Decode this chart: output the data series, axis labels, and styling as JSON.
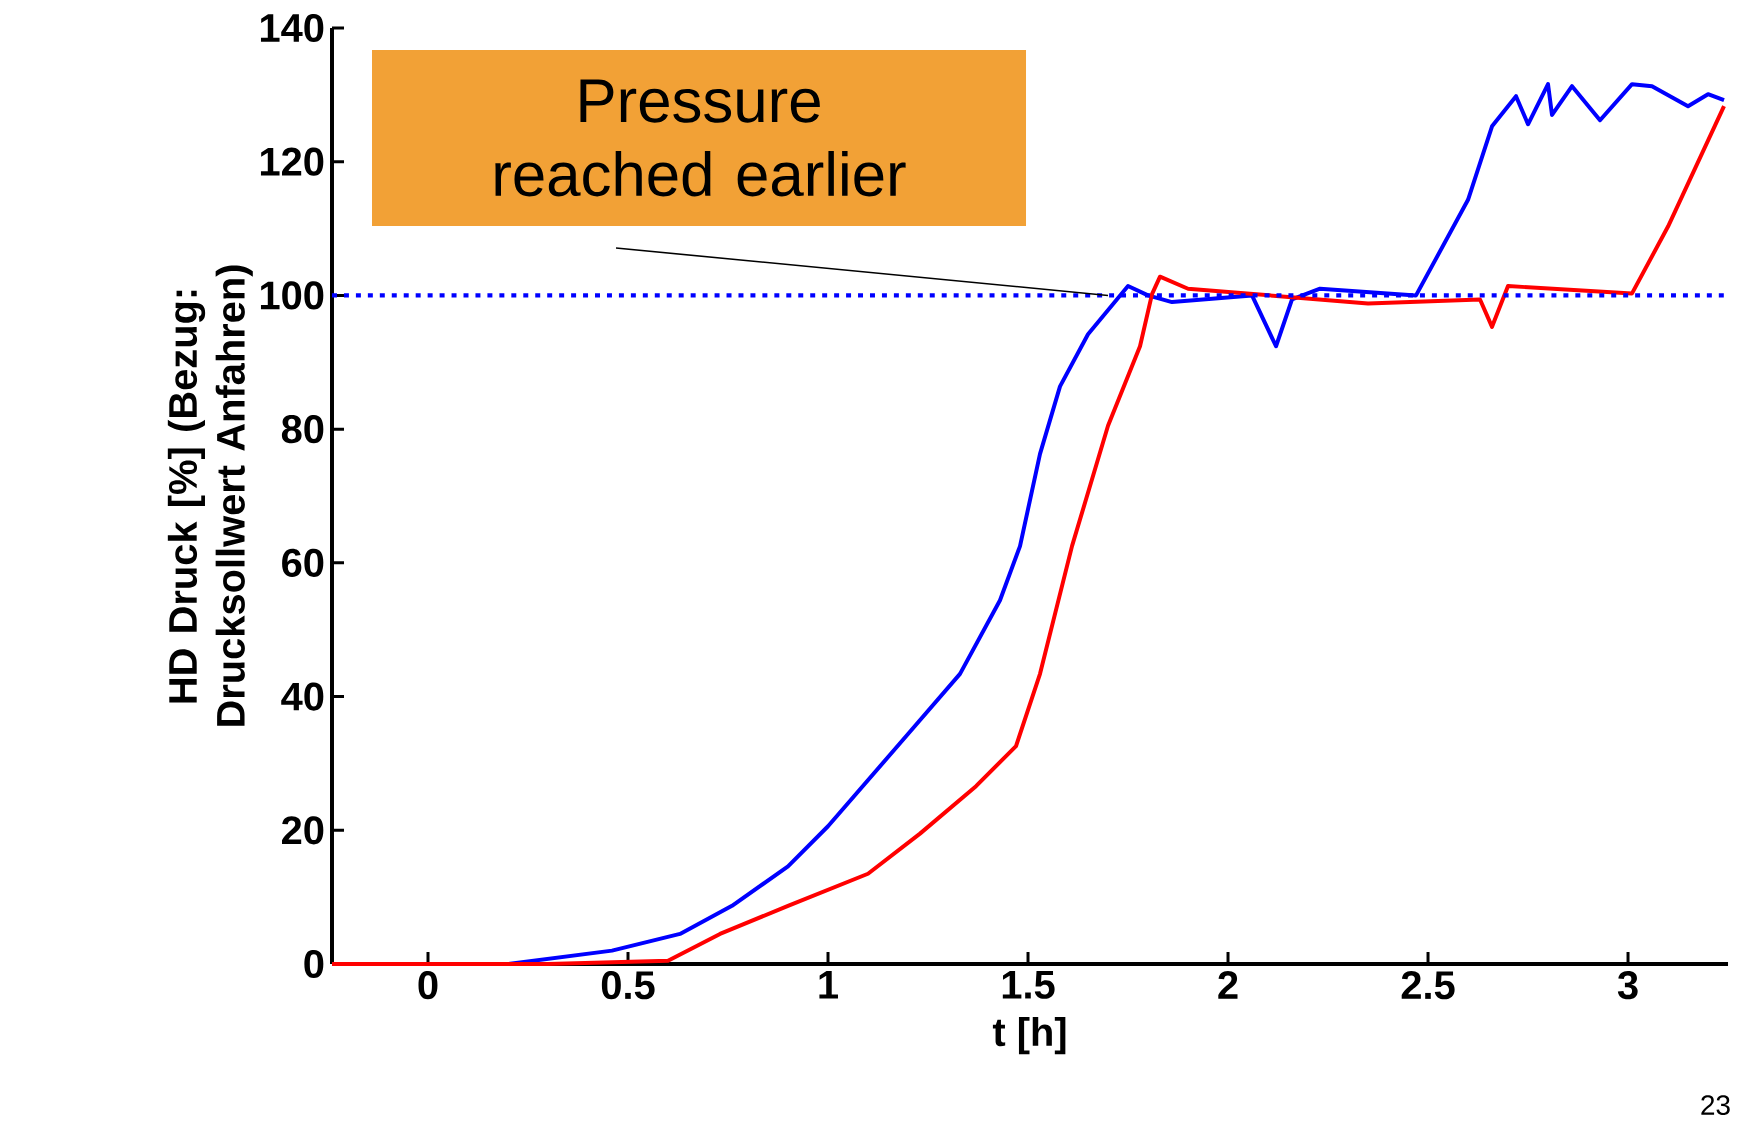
{
  "chart_data": {
    "type": "line",
    "xlabel": "t [h]",
    "ylabel": "HD Druck [%] (Bezug: Drucksollwert Anfahren)",
    "xlim": [
      -0.24,
      3.25
    ],
    "ylim": [
      0,
      140
    ],
    "xticks": [
      0,
      0.5,
      1,
      1.5,
      2,
      2.5,
      3
    ],
    "yticks": [
      0,
      20,
      40,
      60,
      80,
      100,
      120,
      140
    ],
    "grid": false,
    "line_style": "solid",
    "marker": "none",
    "series": [
      {
        "color": "#0000ff",
        "x": [
          -0.24,
          0.2,
          0.46,
          0.63,
          0.76,
          0.9,
          1.0,
          1.1,
          1.2,
          1.33,
          1.43,
          1.48,
          1.53,
          1.58,
          1.65,
          1.75,
          1.8,
          1.86,
          2.06,
          2.12,
          2.16,
          2.23,
          2.47,
          2.6,
          2.66,
          2.72,
          2.75,
          2.8,
          2.81,
          2.86,
          2.93,
          3.01,
          3.06,
          3.15,
          3.2,
          3.24
        ],
        "values": [
          0,
          0,
          2,
          4.5,
          8.7,
          14.6,
          20.6,
          27.5,
          34.4,
          43.4,
          54.4,
          62.5,
          76.3,
          86.4,
          94.2,
          101.4,
          100,
          99,
          100,
          92.4,
          99.4,
          101,
          100,
          114.3,
          125.3,
          129.8,
          125.6,
          131.6,
          127,
          131.3,
          126.2,
          131.6,
          131.3,
          128.3,
          130.1,
          129.2
        ]
      },
      {
        "color": "#ff0000",
        "x": [
          -0.24,
          0.3,
          0.6,
          0.73,
          0.9,
          1.1,
          1.23,
          1.37,
          1.47,
          1.53,
          1.61,
          1.7,
          1.78,
          1.81,
          1.83,
          1.9,
          2.35,
          2.63,
          2.66,
          2.7,
          3.01,
          3.1,
          3.24
        ],
        "values": [
          0,
          0,
          0.5,
          4.5,
          8.7,
          13.5,
          19.5,
          26.6,
          32.6,
          43.4,
          62.5,
          80.5,
          92.4,
          100.2,
          102.8,
          101,
          98.8,
          99.4,
          95.3,
          101.4,
          100.3,
          110.3,
          128.3
        ]
      }
    ],
    "ref_lines": [
      {
        "axis": "y",
        "value": 100,
        "color": "#0000ff",
        "line_style": "dotted"
      }
    ],
    "annotations": [
      {
        "text": "Pressure reached earlier",
        "x": 1.7,
        "y": 100
      },
      "23"
    ]
  }
}
